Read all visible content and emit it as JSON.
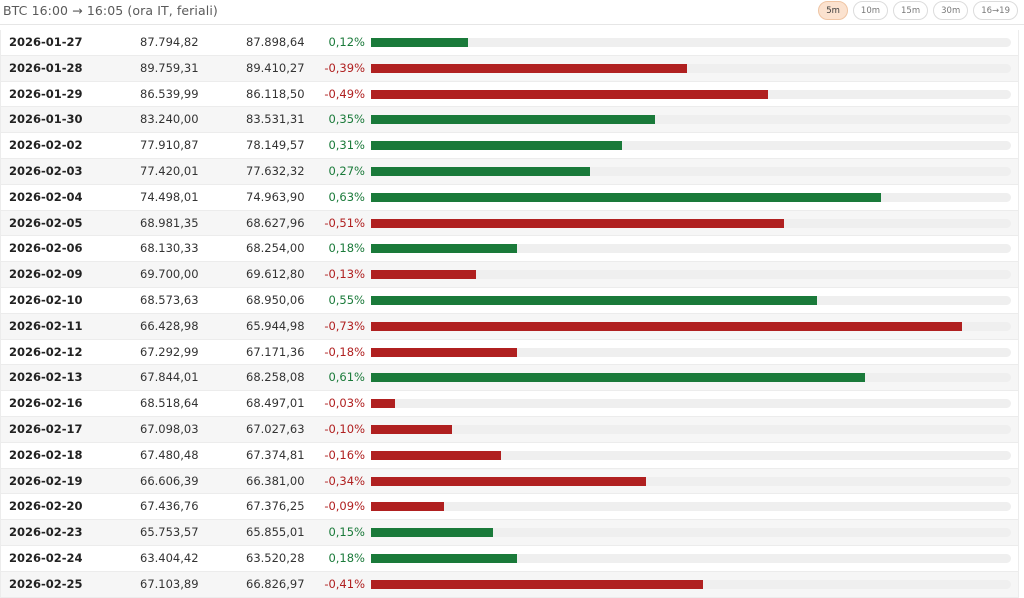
{
  "header": {
    "title": "BTC 16:00 → 16:05 (ora IT, feriali)",
    "tabs": [
      {
        "label": "5m",
        "active": true
      },
      {
        "label": "10m",
        "active": false
      },
      {
        "label": "15m",
        "active": false
      },
      {
        "label": "30m",
        "active": false
      },
      {
        "label": "16→19",
        "active": false
      }
    ]
  },
  "colors": {
    "positive": "#1a7a3a",
    "negative": "#b02020",
    "track": "#efefef",
    "active_tab": "#fbe2cf"
  },
  "chart_data": {
    "type": "bar",
    "orientation": "horizontal",
    "xlim": [
      0,
      0.79
    ],
    "rows": [
      {
        "date": "2026-01-27",
        "open": "87.794,82",
        "close": "87.898,64",
        "change": "0,12%",
        "value": 0.12
      },
      {
        "date": "2026-01-28",
        "open": "89.759,31",
        "close": "89.410,27",
        "change": "-0,39%",
        "value": -0.39
      },
      {
        "date": "2026-01-29",
        "open": "86.539,99",
        "close": "86.118,50",
        "change": "-0,49%",
        "value": -0.49
      },
      {
        "date": "2026-01-30",
        "open": "83.240,00",
        "close": "83.531,31",
        "change": "0,35%",
        "value": 0.35
      },
      {
        "date": "2026-02-02",
        "open": "77.910,87",
        "close": "78.149,57",
        "change": "0,31%",
        "value": 0.31
      },
      {
        "date": "2026-02-03",
        "open": "77.420,01",
        "close": "77.632,32",
        "change": "0,27%",
        "value": 0.27
      },
      {
        "date": "2026-02-04",
        "open": "74.498,01",
        "close": "74.963,90",
        "change": "0,63%",
        "value": 0.63
      },
      {
        "date": "2026-02-05",
        "open": "68.981,35",
        "close": "68.627,96",
        "change": "-0,51%",
        "value": -0.51
      },
      {
        "date": "2026-02-06",
        "open": "68.130,33",
        "close": "68.254,00",
        "change": "0,18%",
        "value": 0.18
      },
      {
        "date": "2026-02-09",
        "open": "69.700,00",
        "close": "69.612,80",
        "change": "-0,13%",
        "value": -0.13
      },
      {
        "date": "2026-02-10",
        "open": "68.573,63",
        "close": "68.950,06",
        "change": "0,55%",
        "value": 0.55
      },
      {
        "date": "2026-02-11",
        "open": "66.428,98",
        "close": "65.944,98",
        "change": "-0,73%",
        "value": -0.73
      },
      {
        "date": "2026-02-12",
        "open": "67.292,99",
        "close": "67.171,36",
        "change": "-0,18%",
        "value": -0.18
      },
      {
        "date": "2026-02-13",
        "open": "67.844,01",
        "close": "68.258,08",
        "change": "0,61%",
        "value": 0.61
      },
      {
        "date": "2026-02-16",
        "open": "68.518,64",
        "close": "68.497,01",
        "change": "-0,03%",
        "value": -0.03
      },
      {
        "date": "2026-02-17",
        "open": "67.098,03",
        "close": "67.027,63",
        "change": "-0,10%",
        "value": -0.1
      },
      {
        "date": "2026-02-18",
        "open": "67.480,48",
        "close": "67.374,81",
        "change": "-0,16%",
        "value": -0.16
      },
      {
        "date": "2026-02-19",
        "open": "66.606,39",
        "close": "66.381,00",
        "change": "-0,34%",
        "value": -0.34
      },
      {
        "date": "2026-02-20",
        "open": "67.436,76",
        "close": "67.376,25",
        "change": "-0,09%",
        "value": -0.09
      },
      {
        "date": "2026-02-23",
        "open": "65.753,57",
        "close": "65.855,01",
        "change": "0,15%",
        "value": 0.15
      },
      {
        "date": "2026-02-24",
        "open": "63.404,42",
        "close": "63.520,28",
        "change": "0,18%",
        "value": 0.18
      },
      {
        "date": "2026-02-25",
        "open": "67.103,89",
        "close": "66.826,97",
        "change": "-0,41%",
        "value": -0.41
      }
    ]
  }
}
